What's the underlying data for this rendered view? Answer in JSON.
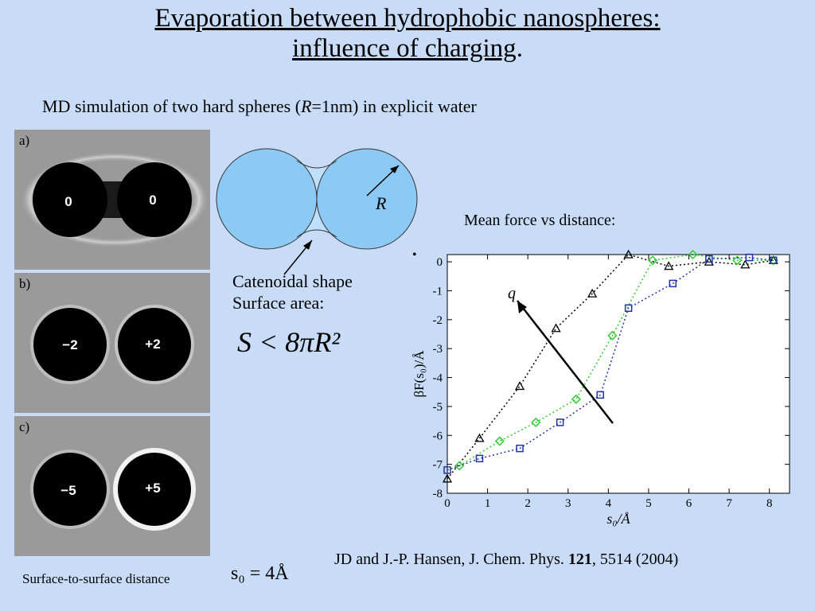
{
  "title": {
    "line1": "Evaporation between hydrophobic nanospheres:",
    "line2": "influence of charging",
    "line2_suffix": "."
  },
  "subtitle": {
    "prefix": "MD simulation of two hard spheres (",
    "var": "R",
    "suffix": "=1nm) in explicit water"
  },
  "panels": [
    {
      "label": "a)",
      "left_charge": "0",
      "right_charge": "0"
    },
    {
      "label": "b)",
      "left_charge": "−2",
      "right_charge": "+2"
    },
    {
      "label": "c)",
      "left_charge": "−5",
      "right_charge": "+5"
    }
  ],
  "diagram": {
    "radius_label": "R",
    "line1": "Catenoidal shape",
    "line2": "Surface area:",
    "formula": "S < 8πR²"
  },
  "mean_force_title": "Mean force vs distance:",
  "surface_label": "Surface-to-surface distance",
  "s0_formula": "s₀ = 4Å",
  "citation": {
    "prefix": "JD and J.-P. Hansen, J. Chem. Phys. ",
    "bold": "121",
    "suffix": ", 5514 (2004)"
  },
  "chart_data": {
    "type": "line",
    "xlabel": "s₀/Å",
    "ylabel": "βF(s₀)/Å",
    "xlim": [
      0,
      8.5
    ],
    "ylim": [
      -8,
      0.25
    ],
    "xticks": [
      "0",
      "1",
      "2",
      "3",
      "4",
      "5",
      "6",
      "7",
      "8"
    ],
    "yticks": [
      "0",
      "-1",
      "-2",
      "-3",
      "-4",
      "-5",
      "-6",
      "-7",
      "-8"
    ],
    "arrow_label": "q",
    "series": [
      {
        "marker": "triangle",
        "color": "#000000",
        "x": [
          0,
          0.8,
          1.8,
          2.7,
          3.6,
          4.5,
          5.5,
          6.5,
          7.4,
          8.1
        ],
        "y": [
          -7.5,
          -6.1,
          -4.3,
          -2.3,
          -1.1,
          0.25,
          -0.15,
          0.0,
          -0.1,
          0.05
        ]
      },
      {
        "marker": "diamond",
        "color": "#33cc33",
        "x": [
          0.3,
          1.3,
          2.2,
          3.2,
          4.1,
          5.1,
          6.1,
          7.2,
          8.1
        ],
        "y": [
          -7.05,
          -6.2,
          -5.55,
          -4.75,
          -2.55,
          0.05,
          0.25,
          0.05,
          0.05
        ]
      },
      {
        "marker": "square",
        "color": "#2233aa",
        "x": [
          0,
          0.8,
          1.8,
          2.8,
          3.8,
          4.5,
          5.6,
          6.5,
          7.5,
          8.1
        ],
        "y": [
          -7.2,
          -6.8,
          -6.45,
          -5.55,
          -4.6,
          -1.6,
          -0.75,
          0.1,
          0.15,
          0.05
        ]
      }
    ]
  }
}
